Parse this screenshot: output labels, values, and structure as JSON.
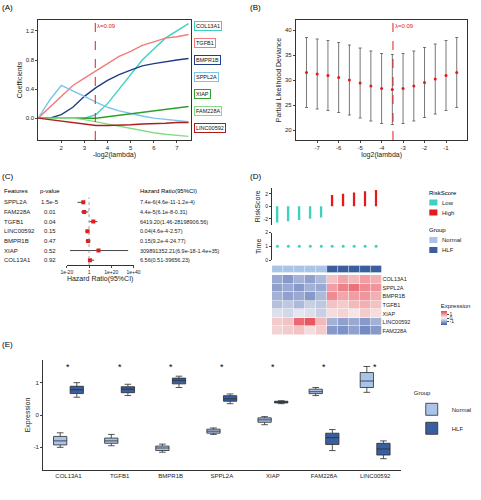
{
  "chart_data": [
    {
      "type": "line",
      "panel_label": "(A)",
      "x_label": "-log2(lambda)",
      "y_label": "Coefficients",
      "x": [
        1,
        1.5,
        2,
        2.5,
        3,
        3.5,
        4,
        4.5,
        5,
        5.5,
        6,
        6.5,
        7,
        7.5
      ],
      "series": [
        {
          "name": "COL13A1",
          "color": "#40d0c0",
          "values": [
            0,
            0,
            0,
            0,
            0,
            0.05,
            0.2,
            0.4,
            0.6,
            0.8,
            0.95,
            1.1,
            1.2,
            1.3
          ]
        },
        {
          "name": "TGFB1",
          "color": "#f07c7c",
          "values": [
            0,
            0.15,
            0.3,
            0.45,
            0.55,
            0.65,
            0.75,
            0.85,
            0.92,
            1.0,
            1.05,
            1.1,
            1.12,
            1.15
          ]
        },
        {
          "name": "BMPR1B",
          "color": "#1f3c88",
          "values": [
            0,
            0,
            0.05,
            0.15,
            0.3,
            0.42,
            0.52,
            0.6,
            0.66,
            0.72,
            0.75,
            0.78,
            0.8,
            0.82
          ]
        },
        {
          "name": "SPPL2A",
          "color": "#7fc4ea",
          "values": [
            0,
            0.25,
            0.45,
            0.38,
            0.3,
            0.22,
            0.15,
            0.1,
            0.06,
            0.03,
            0,
            -0.02,
            -0.04,
            -0.05
          ]
        },
        {
          "name": "XIAP",
          "color": "#2ca02c",
          "values": [
            0,
            0,
            0,
            0,
            0,
            0,
            0.02,
            0.04,
            0.06,
            0.08,
            0.1,
            0.12,
            0.14,
            0.16
          ]
        },
        {
          "name": "FAM228A",
          "color": "#86dc86",
          "values": [
            0,
            0,
            0,
            0,
            -0.02,
            -0.05,
            -0.08,
            -0.12,
            -0.15,
            -0.18,
            -0.2,
            -0.22,
            -0.24,
            -0.25
          ]
        },
        {
          "name": "LINC00592",
          "color": "#b01c1c",
          "values": [
            0,
            -0.02,
            -0.04,
            -0.06,
            -0.08,
            -0.1,
            -0.1,
            -0.1,
            -0.09,
            -0.08,
            -0.08,
            -0.07,
            -0.06,
            -0.06
          ]
        }
      ],
      "xlim": [
        1,
        7.6
      ],
      "xticks": [
        2,
        3,
        4,
        5,
        6,
        7
      ],
      "ylim": [
        -0.3,
        1.35
      ],
      "yticks": [
        {
          "value": 0,
          "label": "0.0"
        },
        {
          "value": 0.4,
          "label": "0.4"
        },
        {
          "value": 0.8,
          "label": "0.8"
        },
        {
          "value": 1.2,
          "label": "1.2"
        }
      ],
      "reference_line": {
        "x": 3.47,
        "label": "λ=0.09"
      },
      "grid": false
    },
    {
      "type": "scatter",
      "panel_label": "(B)",
      "x_label": "log2(lambda)",
      "y_label": "Partial Likelihood Deviance",
      "x": [
        -7.5,
        -7,
        -6.5,
        -6,
        -5.5,
        -5,
        -4.5,
        -4,
        -3.5,
        -3,
        -2.5,
        -2,
        -1.5,
        -1,
        -0.5
      ],
      "values": [
        31.5,
        31.2,
        30.9,
        30.5,
        30.0,
        29.4,
        28.8,
        28.3,
        28.1,
        28.3,
        28.8,
        29.5,
        30.2,
        30.9,
        31.5
      ],
      "errors": [
        7,
        7,
        7,
        7,
        7,
        7,
        7,
        7,
        7,
        7,
        7,
        7,
        7,
        7,
        7
      ],
      "color": "#e31a1c",
      "xlim": [
        -8,
        0
      ],
      "xticks": [
        -7,
        -6,
        -5,
        -4,
        -3,
        -2,
        -1
      ],
      "ylim": [
        18,
        42
      ],
      "yticks": [
        20,
        25,
        30,
        35,
        40
      ],
      "reference_line": {
        "x": -3.47,
        "label": "λ=0.09"
      },
      "grid": false
    },
    {
      "type": "forest",
      "panel_label": "(C)",
      "headers": [
        "Features",
        "p-value",
        "Hazard Ratio(95%CI)"
      ],
      "features": [
        "SPPL2A",
        "FAM228A",
        "TGFB1",
        "LINC00592",
        "BMPR1B",
        "XIAP",
        "COL13A1"
      ],
      "p_values": [
        "1.5e-5",
        "0.01",
        "0.04",
        "0.15",
        "0.47",
        "0.52",
        "0.92"
      ],
      "hr": [
        7.4e-06,
        4.4e-05,
        6419.2,
        0.04,
        0.15,
        309891352.21,
        6.56
      ],
      "lower": [
        4.6e-11,
        6.1e-08,
        1.46,
        0.00046,
        0.00092,
        6.9e-18,
        0.51
      ],
      "upper": [
        0.00012,
        0.31,
        28198906.56,
        2.57,
        24.77,
        1.4e+35,
        39656.23
      ],
      "hr_labels": [
        "7.4e-6(4.6e-11-1.2e-4)",
        "4.4e-5(6.1e-8-0.31)",
        "6419.20(1.46-28198906.56)",
        "0.04(4.6e-4-2.57)",
        "0.15(9.2e-4-24.77)",
        "309891352.21(6.9e-18-1.4e+35)",
        "6.56(0.51-39656.23)"
      ],
      "color": "#e31a1c",
      "x_label": "Hazard Ratio(95%CI)",
      "log": "x",
      "xlim": [
        1e-20,
        1e+40
      ],
      "xticks": [
        {
          "value": 1e-20,
          "label": "1e-20"
        },
        1,
        {
          "value": 1e+20,
          "label": "1e+20"
        },
        {
          "value": 1e+40,
          "label": "1e+40"
        }
      ],
      "reference_line": {
        "x": 1
      },
      "grid": false
    },
    {
      "type": "heatmap",
      "panel_label": "(D)",
      "tick_labels": "y",
      "risk_score": {
        "y_label": "RiskScore",
        "values": [
          -2.6,
          -2.4,
          -2.2,
          -2.0,
          -1.8,
          1.8,
          2.0,
          2.2,
          2.4,
          2.6
        ],
        "groups": [
          "Low",
          "Low",
          "Low",
          "Low",
          "Low",
          "High",
          "High",
          "High",
          "High",
          "High"
        ],
        "ylim": [
          -3,
          3
        ],
        "yticks": [
          -2,
          0,
          2
        ]
      },
      "time": {
        "y_label": "Time",
        "color": "#40d0c0",
        "values": [
          1,
          1,
          1,
          1,
          1,
          1,
          1,
          1,
          1,
          1
        ],
        "ylim": [
          0,
          2
        ],
        "yticks": [
          0,
          1,
          2
        ]
      },
      "heatmap": {
        "rows": [
          "COL13A1",
          "SPPL2A",
          "BMPR1B",
          "TGFB1",
          "XIAP",
          "LINC00592",
          "FAM228A"
        ],
        "values": [
          [
            -1.0,
            -1.2,
            -0.9,
            -1.1,
            -0.8,
            0.6,
            0.9,
            0.7,
            1.0,
            0.8
          ],
          [
            -1.1,
            -1.0,
            -1.2,
            -0.9,
            -1.0,
            1.0,
            1.3,
            1.5,
            1.2,
            1.1
          ],
          [
            -0.9,
            -1.1,
            -1.0,
            -1.2,
            -0.8,
            1.2,
            0.9,
            1.0,
            1.1,
            0.8
          ],
          [
            -0.7,
            -0.6,
            -0.8,
            -0.5,
            -0.6,
            0.6,
            0.5,
            0.7,
            0.8,
            0.6
          ],
          [
            -0.3,
            -0.4,
            -0.2,
            -0.3,
            -0.5,
            0.3,
            0.4,
            0.2,
            0.5,
            0.3
          ],
          [
            0.5,
            0.6,
            1.6,
            1.8,
            0.7,
            -0.9,
            -1.1,
            -1.0,
            -1.2,
            -0.9
          ],
          [
            0.4,
            0.5,
            0.6,
            0.3,
            0.5,
            -1.2,
            -1.3,
            -1.1,
            -1.4,
            -1.2
          ]
        ],
        "column_groups": [
          "Normal",
          "Normal",
          "Normal",
          "Normal",
          "Normal",
          "HLF",
          "HLF",
          "HLF",
          "HLF",
          "HLF"
        ],
        "colorbar_title": "Expression",
        "colorbar_range": [
          -2,
          2
        ],
        "colorbar_ticks": [
          -1,
          0,
          1
        ]
      },
      "risk_legend": {
        "title": "RiskScore",
        "items": [
          {
            "name": "Low",
            "color": "#40d0c0"
          },
          {
            "name": "High",
            "color": "#e41a1c"
          }
        ]
      },
      "group_legend": {
        "title": "Group",
        "items": [
          {
            "name": "Normal",
            "color": "#a9c4e8"
          },
          {
            "name": "HLF",
            "color": "#3a5f9e"
          }
        ]
      }
    },
    {
      "type": "box",
      "panel_label": "(E)",
      "y_label": "Expression",
      "categories": [
        "COL13A1",
        "TGFB1",
        "BMPR1B",
        "SPPL2A",
        "XIAP",
        "FAM228A",
        "LINC00592"
      ],
      "series": [
        {
          "name": "Normal",
          "color": "#a9c4e8",
          "values": [
            [
              -1.0,
              -0.9,
              -0.8,
              -0.7,
              -0.55
            ],
            [
              -0.95,
              -0.85,
              -0.8,
              -0.75,
              -0.6
            ],
            [
              -1.15,
              -1.08,
              -1.02,
              -0.98,
              -0.9
            ],
            [
              -0.6,
              -0.55,
              -0.5,
              -0.45,
              -0.4
            ],
            [
              -0.3,
              -0.2,
              -0.15,
              -0.1,
              -0.05
            ],
            [
              0.6,
              0.68,
              0.72,
              0.78,
              0.85
            ],
            [
              0.7,
              0.9,
              1.05,
              1.25,
              1.5
            ]
          ]
        },
        {
          "name": "HLF",
          "color": "#3a5f9e",
          "values": [
            [
              0.55,
              0.7,
              0.78,
              0.85,
              1.0
            ],
            [
              0.6,
              0.72,
              0.8,
              0.85,
              0.95
            ],
            [
              0.85,
              1.0,
              1.07,
              1.12,
              1.2
            ],
            [
              0.35,
              0.45,
              0.5,
              0.58,
              0.65
            ],
            [
              0.35,
              0.38,
              0.4,
              0.42,
              0.44
            ],
            [
              -1.1,
              -0.85,
              -0.7,
              -0.6,
              -0.45
            ],
            [
              -1.35,
              -1.2,
              -1.05,
              -0.9,
              -0.8
            ]
          ]
        }
      ],
      "significance": [
        "*",
        "*",
        "*",
        "*",
        "*",
        "*",
        "*"
      ],
      "legend_title": "Group",
      "legend": "right",
      "ylim": [
        -1.7,
        1.7
      ],
      "yticks": [
        -1,
        0,
        1
      ],
      "grid": false
    }
  ]
}
